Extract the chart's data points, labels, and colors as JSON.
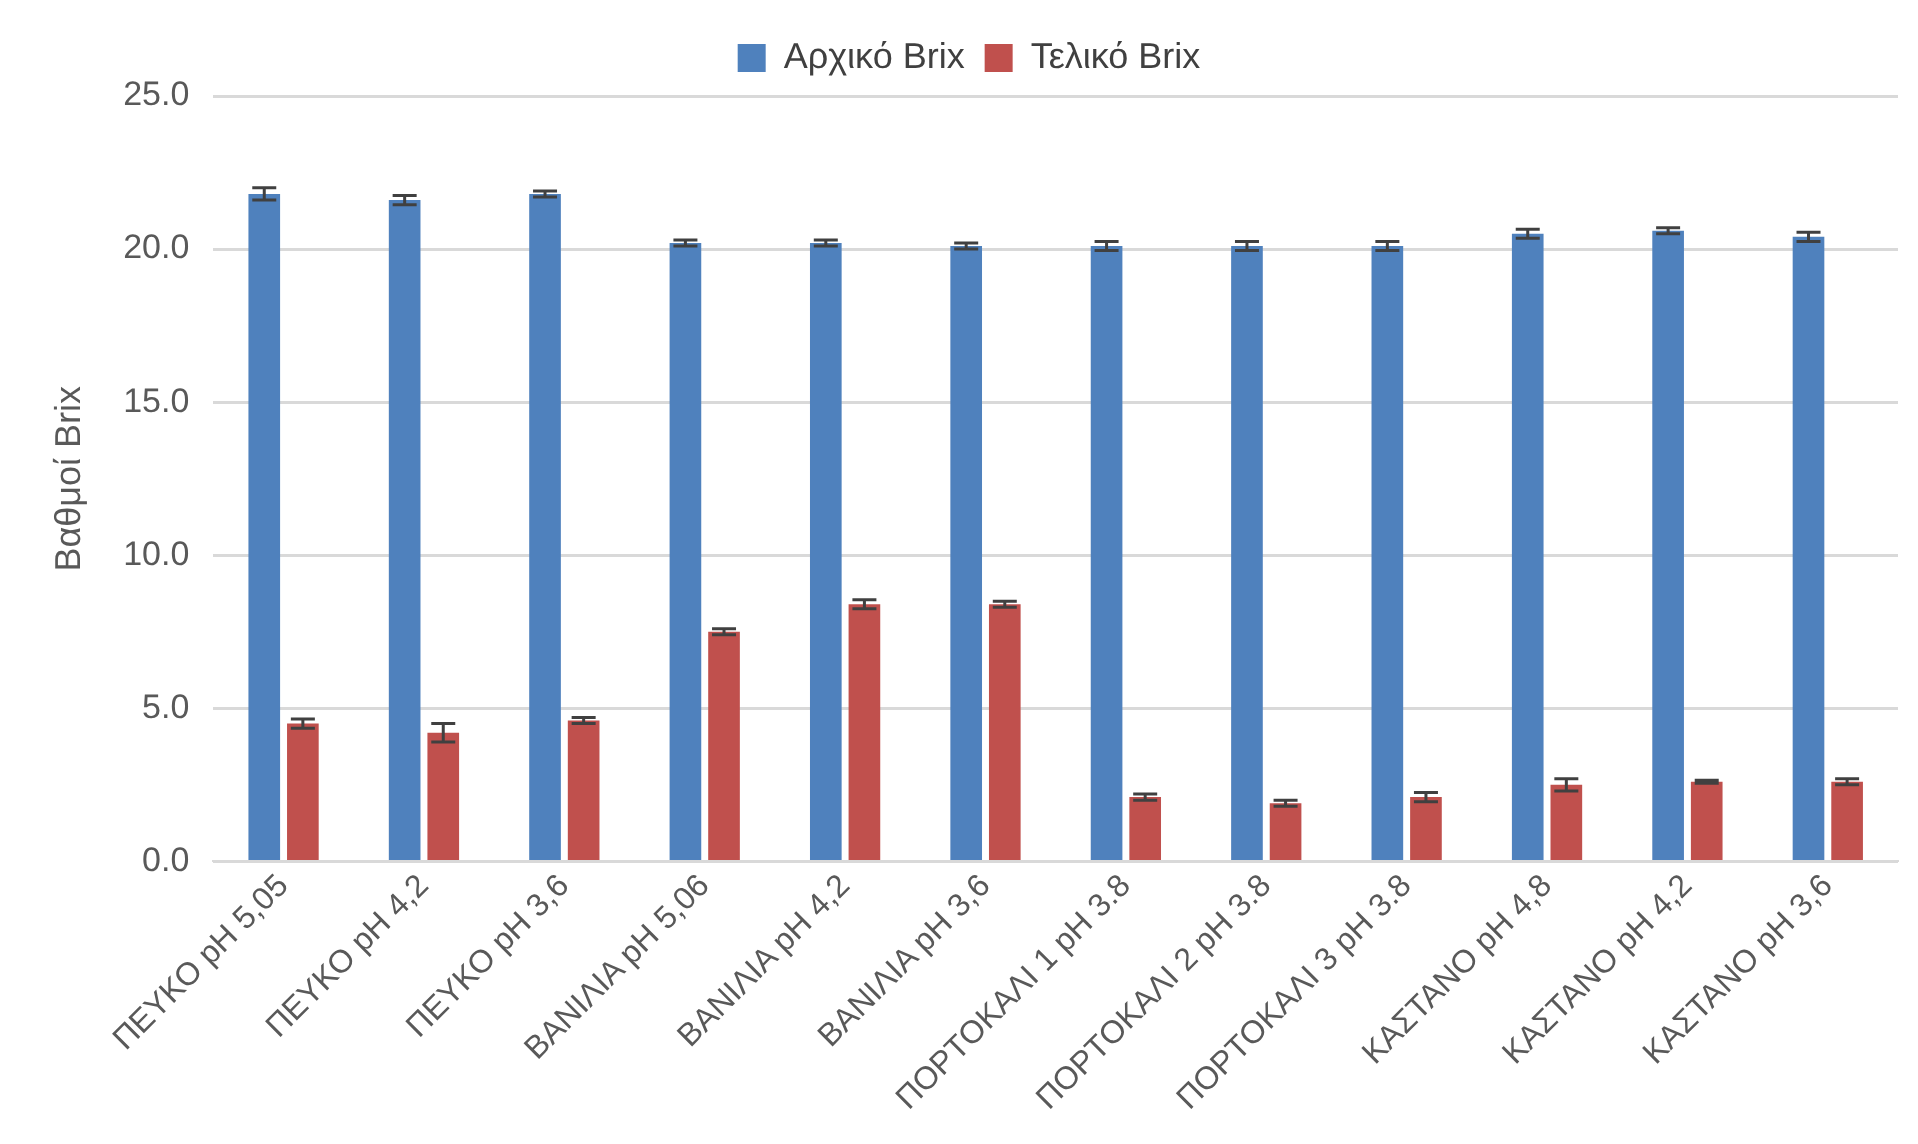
{
  "chart_data": {
    "type": "bar",
    "ylabel": "Βαθμοί Brix",
    "categories": [
      "ΠΕΥΚΟ pH 5,05",
      "ΠΕΥΚΟ pH 4,2",
      "ΠΕΥΚΟ pH 3,6",
      "ΒΑΝΙΛΙΑ pH 5,06",
      "ΒΑΝΙΛΙΑ pH 4,2",
      "ΒΑΝΙΛΙΑ pH 3,6",
      "ΠΟΡΤΟΚΑΛΙ 1 pH 3.8",
      "ΠΟΡΤΟΚΑΛΙ 2 pH 3.8",
      "ΠΟΡΤΟΚΑΛΙ 3 pH 3.8",
      "ΚΑΣΤΑΝΟ pH 4,8",
      "ΚΑΣΤΑΝΟ pH 4,2",
      "ΚΑΣΤΑΝΟ pH 3,6"
    ],
    "series": [
      {
        "name": "Αρχικό Brix",
        "color": "#4f81bd",
        "values": [
          21.8,
          21.6,
          21.8,
          20.2,
          20.2,
          20.1,
          20.1,
          20.1,
          20.1,
          20.5,
          20.6,
          20.4
        ],
        "errors": [
          0.2,
          0.15,
          0.1,
          0.1,
          0.1,
          0.1,
          0.15,
          0.15,
          0.15,
          0.15,
          0.1,
          0.15
        ]
      },
      {
        "name": "Τελικό Brix",
        "color": "#c0504d",
        "values": [
          4.5,
          4.2,
          4.6,
          7.5,
          8.4,
          8.4,
          2.1,
          1.9,
          2.1,
          2.5,
          2.6,
          2.6
        ],
        "errors": [
          0.15,
          0.3,
          0.1,
          0.1,
          0.15,
          0.1,
          0.1,
          0.1,
          0.15,
          0.2,
          0.05,
          0.1
        ]
      }
    ],
    "ylim": [
      0,
      25
    ],
    "yticks": [
      {
        "value": 0,
        "label": "0.0"
      },
      {
        "value": 5,
        "label": "5.0"
      },
      {
        "value": 10,
        "label": "10.0"
      },
      {
        "value": 15,
        "label": "15.0"
      },
      {
        "value": 20,
        "label": "20.0"
      },
      {
        "value": 25,
        "label": "25.0"
      }
    ],
    "grid": "y",
    "legend": "top"
  }
}
